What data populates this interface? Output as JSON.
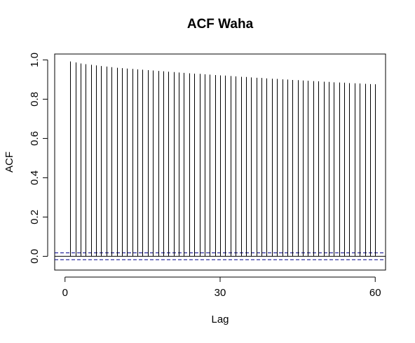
{
  "chart_data": {
    "type": "bar",
    "title": "ACF Waha",
    "xlabel": "Lag",
    "ylabel": "ACF",
    "xlim": [
      -2,
      62
    ],
    "ylim": [
      -0.07,
      1.03
    ],
    "x_ticks": [
      0,
      30,
      60
    ],
    "y_ticks": [
      0.0,
      0.2,
      0.4,
      0.6,
      0.8,
      1.0
    ],
    "y_tick_labels": [
      "0.0",
      "0.2",
      "0.4",
      "0.6",
      "0.8",
      "1.0"
    ],
    "x_tick_labels": [
      "0",
      "30",
      "60"
    ],
    "confidence_bound": 0.0175,
    "zero_line": 0,
    "bound_line_color": "#00008b",
    "series": [
      {
        "lags": [
          1,
          2,
          3,
          4,
          5,
          6,
          7,
          8,
          9,
          10,
          11,
          12,
          13,
          14,
          15,
          16,
          17,
          18,
          19,
          20,
          21,
          22,
          23,
          24,
          25,
          26,
          27,
          28,
          29,
          30,
          31,
          32,
          33,
          34,
          35,
          36,
          37,
          38,
          39,
          40,
          41,
          42,
          43,
          44,
          45,
          46,
          47,
          48,
          49,
          50,
          51,
          52,
          53,
          54,
          55,
          56,
          57,
          58,
          59,
          60
        ],
        "values": [
          0.992,
          0.987,
          0.982,
          0.978,
          0.975,
          0.972,
          0.969,
          0.966,
          0.963,
          0.96,
          0.958,
          0.956,
          0.954,
          0.952,
          0.95,
          0.948,
          0.946,
          0.944,
          0.942,
          0.94,
          0.938,
          0.936,
          0.934,
          0.932,
          0.93,
          0.929,
          0.927,
          0.925,
          0.923,
          0.921,
          0.92,
          0.918,
          0.916,
          0.914,
          0.913,
          0.911,
          0.909,
          0.908,
          0.906,
          0.904,
          0.903,
          0.901,
          0.9,
          0.898,
          0.897,
          0.895,
          0.894,
          0.892,
          0.891,
          0.889,
          0.888,
          0.886,
          0.885,
          0.884,
          0.882,
          0.881,
          0.88,
          0.878,
          0.877,
          0.876
        ]
      }
    ]
  }
}
